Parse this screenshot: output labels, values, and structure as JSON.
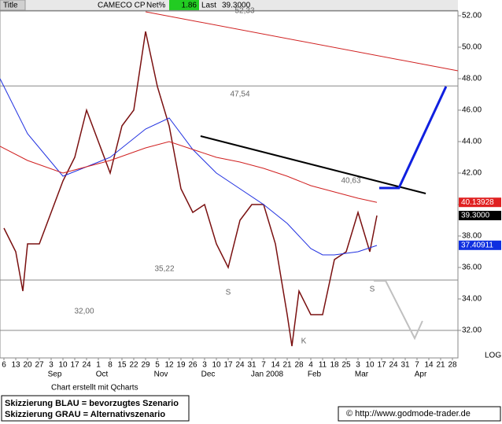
{
  "header": {
    "title": "Title",
    "symbol": "CAMECO CP",
    "net_label": "Net%",
    "net_value": "1.86",
    "last_label": "Last",
    "last_value": "39.3000"
  },
  "chart_data": {
    "type": "line",
    "scale_label": "LOG",
    "xlim": [
      -1.67,
      192.33
    ],
    "ylim": [
      30.25,
      52.3
    ],
    "yticks": [
      {
        "value": 32,
        "label": "32.00"
      },
      {
        "value": 34,
        "label": "34.00"
      },
      {
        "value": 36,
        "label": "36.00"
      },
      {
        "value": 38,
        "label": "38.00"
      },
      {
        "value": 40,
        "label": "40.00"
      },
      {
        "value": 42,
        "label": "42.00"
      },
      {
        "value": 44,
        "label": "44.00"
      },
      {
        "value": 46,
        "label": "46.00"
      },
      {
        "value": 48,
        "label": "48.00"
      },
      {
        "value": 50,
        "label": "50.00"
      },
      {
        "value": 52,
        "label": "52.00"
      }
    ],
    "xticks": [
      {
        "value": 0,
        "label": "6"
      },
      {
        "value": 5,
        "label": "13"
      },
      {
        "value": 10,
        "label": "20"
      },
      {
        "value": 15,
        "label": "27"
      },
      {
        "value": 20,
        "label": "3"
      },
      {
        "value": 25,
        "label": "10"
      },
      {
        "value": 30,
        "label": "17"
      },
      {
        "value": 35,
        "label": "24"
      },
      {
        "value": 40,
        "label": "1"
      },
      {
        "value": 45,
        "label": "8"
      },
      {
        "value": 50,
        "label": "15"
      },
      {
        "value": 55,
        "label": "22"
      },
      {
        "value": 60,
        "label": "29"
      },
      {
        "value": 65,
        "label": "5"
      },
      {
        "value": 70,
        "label": "12"
      },
      {
        "value": 75,
        "label": "19"
      },
      {
        "value": 80,
        "label": "26"
      },
      {
        "value": 85,
        "label": "3"
      },
      {
        "value": 90,
        "label": "10"
      },
      {
        "value": 95,
        "label": "17"
      },
      {
        "value": 100,
        "label": "24"
      },
      {
        "value": 105,
        "label": "31"
      },
      {
        "value": 110,
        "label": "7"
      },
      {
        "value": 115,
        "label": "14"
      },
      {
        "value": 120,
        "label": "21"
      },
      {
        "value": 125,
        "label": "28"
      },
      {
        "value": 130,
        "label": "4"
      },
      {
        "value": 135,
        "label": "11"
      },
      {
        "value": 140,
        "label": "18"
      },
      {
        "value": 145,
        "label": "25"
      },
      {
        "value": 150,
        "label": "3"
      },
      {
        "value": 155,
        "label": "10"
      },
      {
        "value": 160,
        "label": "17"
      },
      {
        "value": 165,
        "label": "24"
      },
      {
        "value": 170,
        "label": "31"
      },
      {
        "value": 175,
        "label": "7"
      },
      {
        "value": 180,
        "label": "14"
      },
      {
        "value": 185,
        "label": "21"
      },
      {
        "value": 190,
        "label": "28"
      }
    ],
    "months": [
      {
        "value": 21.5,
        "label": "Sep"
      },
      {
        "value": 41.5,
        "label": "Oct"
      },
      {
        "value": 66.5,
        "label": "Nov"
      },
      {
        "value": 86.5,
        "label": "Dec"
      },
      {
        "value": 111.5,
        "label": "Jan 2008"
      },
      {
        "value": 131.5,
        "label": "Feb"
      },
      {
        "value": 151.5,
        "label": "Mar"
      },
      {
        "value": 176.5,
        "label": "Apr"
      }
    ],
    "series": [
      {
        "color": "#7a1010",
        "width": 1.5,
        "x": [
          0,
          5,
          8,
          10,
          15,
          20,
          25,
          30,
          35,
          40,
          45,
          50,
          55,
          60,
          65,
          70,
          75,
          80,
          85,
          90,
          95,
          100,
          105,
          110,
          115,
          120,
          122,
          125,
          130,
          135,
          140,
          145,
          150,
          153,
          155,
          158
        ],
        "values": [
          38.5,
          37,
          34.5,
          37.5,
          37.5,
          39.5,
          41.5,
          43,
          46,
          44,
          42,
          45,
          46,
          51,
          47.5,
          45,
          41,
          39.5,
          40,
          37.5,
          36,
          39,
          40,
          40,
          37.5,
          33,
          31,
          34.5,
          33,
          33,
          36.5,
          37,
          39.5,
          38,
          37,
          39.3
        ]
      },
      {
        "color": "#2030e0",
        "width": 1,
        "x": [
          -1.67,
          10,
          25,
          45,
          60,
          70,
          80,
          90,
          100,
          110,
          120,
          130,
          135,
          140,
          150,
          158
        ],
        "values": [
          48,
          44.5,
          41.8,
          43,
          44.8,
          45.5,
          43.5,
          42,
          41,
          40,
          38.8,
          37.2,
          36.8,
          36.8,
          37,
          37.4
        ]
      },
      {
        "color": "#d02020",
        "width": 1,
        "x": [
          -1.67,
          10,
          25,
          45,
          60,
          70,
          80,
          90,
          100,
          110,
          120,
          130,
          140,
          150,
          158
        ],
        "values": [
          43.7,
          42.8,
          42,
          42.8,
          43.6,
          44,
          43.5,
          43,
          42.7,
          42.3,
          41.8,
          41.2,
          40.8,
          40.4,
          40.14
        ]
      },
      {
        "color": "#d02020",
        "width": 1,
        "x": [
          60,
          192.33
        ],
        "values": [
          52.25,
          48.5
        ]
      },
      {
        "color": "#000000",
        "width": 2,
        "x": [
          83.3,
          178.7
        ],
        "values": [
          44.35,
          40.7
        ]
      },
      {
        "color": "#1020e0",
        "width": 3,
        "x": [
          159,
          167.3,
          187.3
        ],
        "values": [
          41.05,
          41.05,
          47.5
        ]
      },
      {
        "color": "#c0c0c0",
        "width": 2,
        "x": [
          156.7,
          161.7,
          174,
          177.3
        ],
        "values": [
          35.15,
          35.15,
          31.5,
          32.6
        ]
      }
    ],
    "levels": [
      {
        "value": 52.33,
        "color": "#888888"
      },
      {
        "value": 47.54,
        "color": "#888888"
      },
      {
        "value": 35.2,
        "color": "#888888"
      },
      {
        "value": 32.0,
        "color": "#888888"
      }
    ],
    "annotations": [
      {
        "text": "52,33",
        "x": 102,
        "y": 52.3
      },
      {
        "text": "47,54",
        "x": 100,
        "y": 47.0
      },
      {
        "text": "40,63",
        "x": 147,
        "y": 41.5
      },
      {
        "text": "35,22",
        "x": 68,
        "y": 35.9
      },
      {
        "text": "32,00",
        "x": 34,
        "y": 33.2
      },
      {
        "text": "S",
        "x": 95,
        "y": 34.4
      },
      {
        "text": "S",
        "x": 156,
        "y": 34.6
      },
      {
        "text": "K",
        "x": 127,
        "y": 31.3
      }
    ],
    "price_labels": [
      {
        "value": 40.13928,
        "label": "40.13928",
        "color": "#e02020"
      },
      {
        "value": 39.3,
        "label": "39.3000",
        "color": "#000000"
      },
      {
        "value": 37.40911,
        "label": "37.40911",
        "color": "#1030e0"
      }
    ]
  },
  "footer": {
    "credit": "Chart erstellt mit Qcharts",
    "legend": [
      "Skizzierung BLAU = bevorzugtes Szenario",
      "Skizzierung GRAU = Alternativszenario"
    ],
    "source": "© http://www.godmode-trader.de"
  }
}
